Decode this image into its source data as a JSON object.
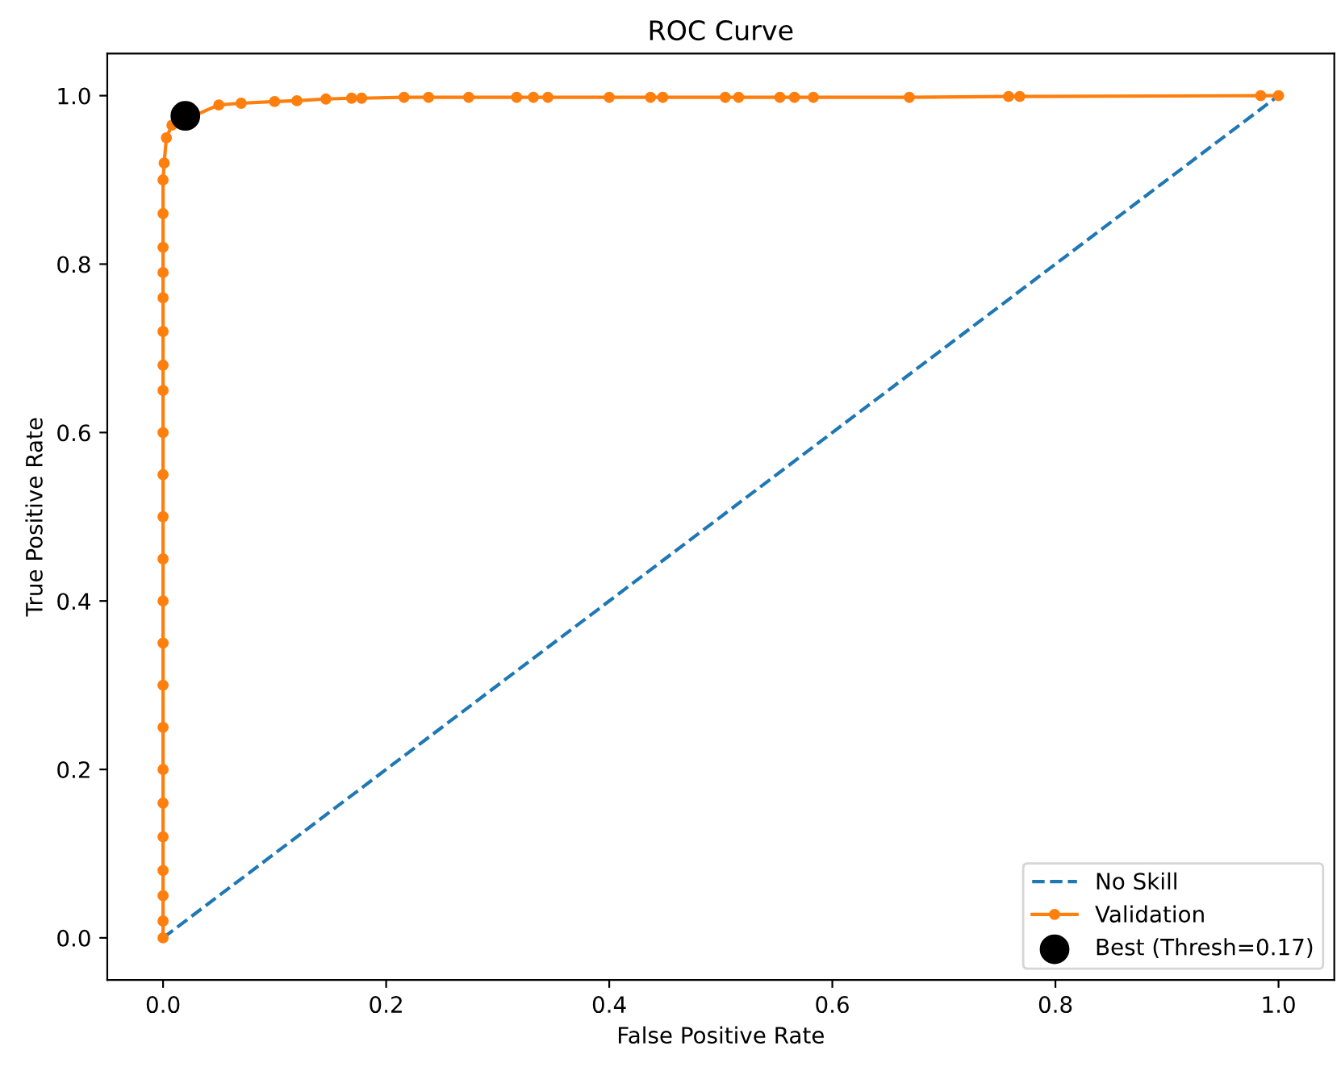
{
  "chart_data": {
    "type": "line",
    "title": "ROC Curve",
    "xlabel": "False Positive Rate",
    "ylabel": "True Positive Rate",
    "xlim": [
      -0.05,
      1.05
    ],
    "ylim": [
      -0.05,
      1.05
    ],
    "xticks": [
      {
        "value": 0,
        "label": "0.0"
      },
      0.2,
      0.4,
      0.6,
      0.8,
      {
        "value": 1,
        "label": "1.0"
      }
    ],
    "yticks": [
      {
        "value": 0,
        "label": "0.0"
      },
      0.2,
      0.4,
      0.6,
      0.8,
      {
        "value": 1,
        "label": "1.0"
      }
    ],
    "grid": false,
    "legend": "bottom right",
    "series": [
      {
        "name": "No Skill",
        "color": "#1f77b4",
        "type": "line",
        "line_style": "dashed",
        "marker": "none",
        "x": [
          0,
          1
        ],
        "values": [
          0,
          1
        ]
      },
      {
        "name": "Validation",
        "color": "#ff7f0e",
        "type": "line",
        "line_style": "solid",
        "marker": "circle",
        "x": [
          0,
          0,
          0,
          0,
          0,
          0,
          0,
          0,
          0,
          0,
          0,
          0,
          0,
          0,
          0,
          0,
          0,
          0,
          0,
          0,
          0,
          0,
          0,
          0.001,
          0.003,
          0.008,
          0.05,
          0.07,
          0.1,
          0.12,
          0.146,
          0.169,
          0.178,
          0.216,
          0.238,
          0.274,
          0.317,
          0.332,
          0.345,
          0.4,
          0.437,
          0.448,
          0.504,
          0.516,
          0.553,
          0.566,
          0.583,
          0.669,
          0.758,
          0.768,
          0.984,
          1.0
        ],
        "values": [
          0,
          0.02,
          0.05,
          0.08,
          0.12,
          0.16,
          0.2,
          0.25,
          0.3,
          0.35,
          0.4,
          0.45,
          0.5,
          0.55,
          0.6,
          0.65,
          0.68,
          0.72,
          0.76,
          0.79,
          0.82,
          0.86,
          0.9,
          0.92,
          0.95,
          0.965,
          0.989,
          0.991,
          0.993,
          0.994,
          0.996,
          0.997,
          0.997,
          0.998,
          0.998,
          0.998,
          0.998,
          0.998,
          0.998,
          0.998,
          0.998,
          0.998,
          0.998,
          0.998,
          0.998,
          0.998,
          0.998,
          0.998,
          0.999,
          0.999,
          1.0,
          1.0
        ]
      },
      {
        "name": "Best (Thresh=0.17)",
        "color": "#000000",
        "type": "scatter",
        "marker": "circle",
        "x": [
          0.02
        ],
        "values": [
          0.976
        ]
      }
    ]
  }
}
